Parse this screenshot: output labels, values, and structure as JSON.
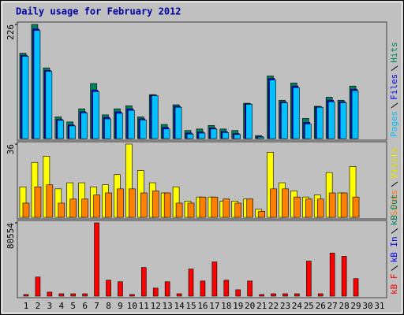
{
  "chart_data": [
    {
      "type": "bar",
      "title": "Daily usage for February 2012",
      "ylim": [
        0,
        226
      ],
      "yticks": [
        226
      ],
      "series": [
        {
          "name": "Hits",
          "color": "#00805c",
          "values": [
            169,
            226,
            140,
            43,
            33,
            59,
            109,
            47,
            59,
            65,
            43,
            87,
            28,
            67,
            16,
            19,
            26,
            19,
            16,
            70,
            6,
            124,
            76,
            110,
            40,
            64,
            82,
            76,
            104,
            null,
            null
          ]
        },
        {
          "name": "Files",
          "color": "#0000ff",
          "values": [
            165,
            217,
            135,
            38,
            27,
            53,
            96,
            42,
            53,
            59,
            39,
            86,
            22,
            64,
            11,
            13,
            21,
            14,
            10,
            69,
            4,
            119,
            73,
            104,
            32,
            63,
            76,
            73,
            98,
            null,
            null
          ]
        },
        {
          "name": "Pages",
          "color": "#00c0ff",
          "values": [
            163,
            214,
            133,
            36,
            25,
            51,
            93,
            39,
            50,
            56,
            37,
            85,
            19,
            62,
            9,
            11,
            19,
            12,
            8,
            68,
            3,
            116,
            71,
            101,
            29,
            62,
            73,
            71,
            95,
            null,
            null
          ]
        }
      ]
    },
    {
      "type": "bar",
      "ylim": [
        0,
        36
      ],
      "yticks": [
        36
      ],
      "series": [
        {
          "name": "Visits",
          "color": "#ffff00",
          "values": [
            15,
            27,
            30,
            14,
            17,
            17,
            15,
            16,
            21,
            36,
            23,
            17,
            12,
            15,
            8,
            10,
            10,
            8,
            8,
            9,
            4,
            32,
            17,
            13,
            10,
            11,
            22,
            12,
            25,
            null,
            null
          ]
        },
        {
          "name": "Sites",
          "color": "#ff8000",
          "values": [
            7,
            15,
            16,
            7,
            9,
            9,
            11,
            12,
            14,
            14,
            12,
            13,
            12,
            7,
            7,
            10,
            10,
            9,
            7,
            9,
            3,
            14,
            14,
            10,
            9,
            9,
            12,
            12,
            10,
            null,
            null
          ]
        }
      ]
    },
    {
      "type": "bar",
      "ylim": [
        0,
        80554
      ],
      "yticks": [
        80554
      ],
      "categories": [
        "1",
        "2",
        "3",
        "4",
        "5",
        "6",
        "7",
        "8",
        "9",
        "10",
        "11",
        "12",
        "13",
        "14",
        "15",
        "16",
        "17",
        "18",
        "19",
        "20",
        "21",
        "22",
        "23",
        "24",
        "25",
        "26",
        "27",
        "28",
        "29",
        "30",
        "31"
      ],
      "series": [
        {
          "name": "kB Out",
          "color": "#00805c",
          "values": [
            0,
            0,
            0,
            0,
            0,
            0,
            0,
            0,
            0,
            0,
            0,
            0,
            0,
            0,
            0,
            0,
            0,
            0,
            0,
            0,
            0,
            0,
            0,
            0,
            0,
            0,
            0,
            0,
            0,
            null,
            null
          ]
        },
        {
          "name": "kB In",
          "color": "#0000ff",
          "values": [
            0,
            0,
            0,
            0,
            0,
            0,
            0,
            0,
            0,
            0,
            0,
            0,
            0,
            0,
            0,
            0,
            0,
            0,
            0,
            0,
            0,
            0,
            0,
            0,
            0,
            0,
            0,
            0,
            0,
            null,
            null
          ]
        },
        {
          "name": "kB F",
          "color": "#ff0000",
          "values": [
            1750,
            21000,
            4400,
            2600,
            2600,
            2600,
            80554,
            17500,
            15800,
            1750,
            31500,
            8800,
            15800,
            2600,
            29800,
            16600,
            37600,
            17500,
            7000,
            16600,
            1750,
            2600,
            2600,
            2600,
            38500,
            2600,
            47300,
            43800,
            19300,
            null,
            null
          ]
        }
      ]
    }
  ]
}
